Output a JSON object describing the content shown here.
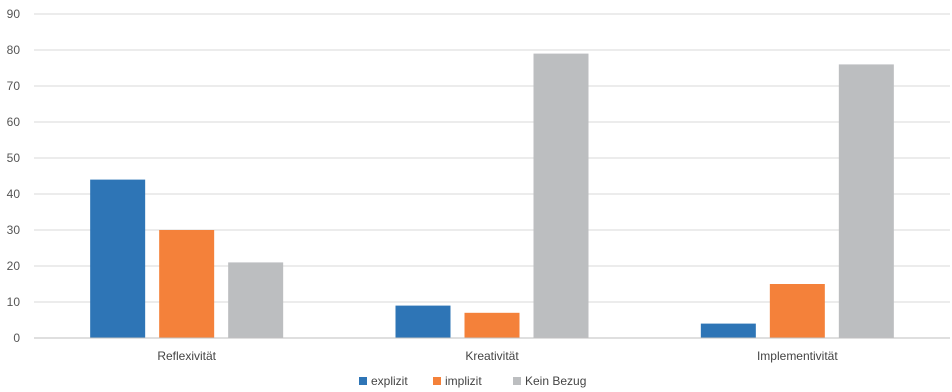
{
  "chart_data": {
    "type": "bar",
    "categories": [
      "Reflexivität",
      "Kreativität",
      "Implementivität"
    ],
    "series": [
      {
        "name": "explizit",
        "values": [
          44,
          9,
          4
        ],
        "color": "#2e75b6"
      },
      {
        "name": "implizit",
        "values": [
          30,
          7,
          15
        ],
        "color": "#f4813a"
      },
      {
        "name": "Kein Bezug",
        "values": [
          21,
          79,
          76
        ],
        "color": "#bcbec0"
      }
    ],
    "title": "",
    "xlabel": "",
    "ylabel": "",
    "ylim": [
      0,
      90
    ],
    "yticks": [
      0,
      10,
      20,
      30,
      40,
      50,
      60,
      70,
      80,
      90
    ],
    "grid": true,
    "legend_position": "bottom"
  }
}
